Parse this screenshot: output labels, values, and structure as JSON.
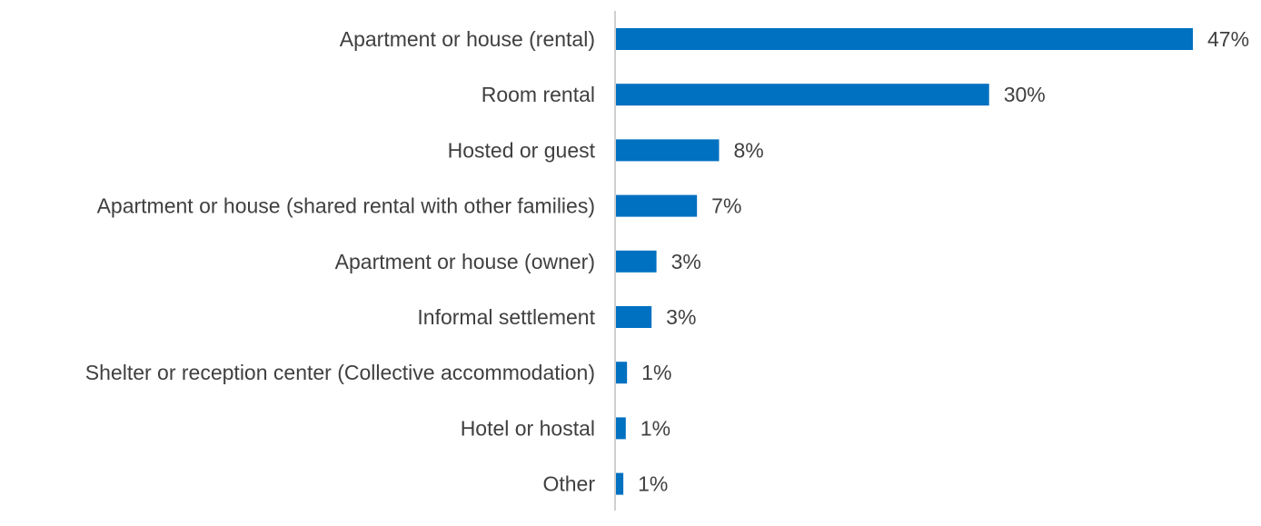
{
  "chart_data": {
    "type": "bar",
    "orientation": "horizontal",
    "title": "",
    "xlabel": "",
    "ylabel": "",
    "categories": [
      "Apartment or house (rental)",
      "Room rental",
      "Hosted or guest",
      "Apartment or house (shared rental with other families)",
      "Apartment or house (owner)",
      "Informal settlement",
      "Shelter or reception center (Collective accommodation)",
      "Hotel or hostal",
      "Other"
    ],
    "values": [
      47,
      30,
      8,
      7,
      3,
      3,
      1,
      1,
      1
    ],
    "plot_values": [
      47,
      30.4,
      8.4,
      6.6,
      3.3,
      2.9,
      0.9,
      0.8,
      0.6
    ],
    "value_labels": [
      "47%",
      "30%",
      "8%",
      "7%",
      "3%",
      "3%",
      "1%",
      "1%",
      "1%"
    ],
    "unit": "%",
    "xlim": [
      0,
      50
    ],
    "grid": false,
    "legend": "none",
    "bar_color": "#0070C0",
    "axis_color": "#BFBFBF",
    "text_color": "#404040"
  }
}
